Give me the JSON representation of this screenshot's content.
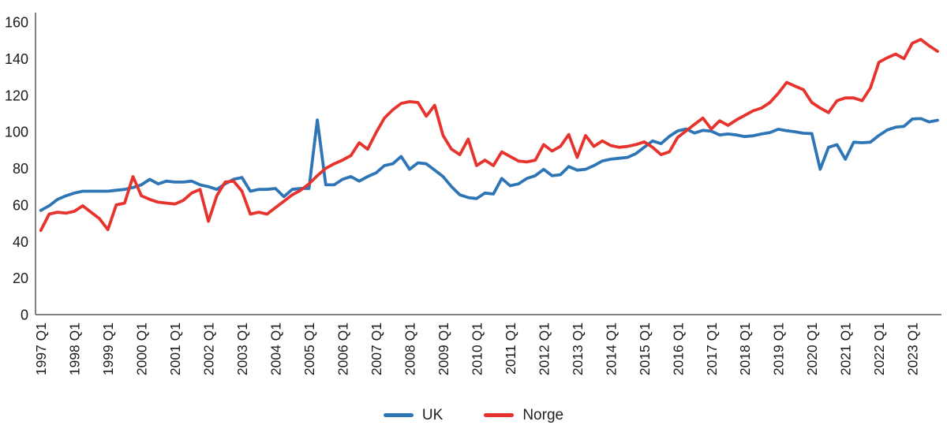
{
  "chart_data": {
    "type": "line",
    "title": "",
    "xlabel": "",
    "ylabel": "",
    "ylim": [
      0,
      160
    ],
    "grid": false,
    "legend_position": "bottom-center",
    "y_tick_labels": [
      "0",
      "20",
      "40",
      "60",
      "80",
      "100",
      "120",
      "140",
      "160"
    ],
    "x_tick_labels": [
      "1997 Q1",
      "1998 Q1",
      "1999 Q1",
      "2000 Q1",
      "2001 Q1",
      "2002 Q1",
      "2003 Q1",
      "2004 Q1",
      "2005 Q1",
      "2006 Q1",
      "2007 Q1",
      "2008 Q1",
      "2009 Q1",
      "2010 Q1",
      "2011 Q1",
      "2012 Q1",
      "2013 Q1",
      "2014 Q1",
      "2015 Q1",
      "2016 Q1",
      "2017 Q1",
      "2018 Q1",
      "2019 Q1",
      "2020 Q1",
      "2021 Q1",
      "2022 Q1",
      "2023 Q1"
    ],
    "x_frequency": "quarterly",
    "x_start": "1997 Q1",
    "x_end": "2023 Q4",
    "series": [
      {
        "name": "UK",
        "color": "#2E75B6",
        "values": [
          57,
          59.5,
          63,
          65,
          66.5,
          67.5,
          67.5,
          67.5,
          67.5,
          68,
          68.5,
          69.5,
          71,
          74,
          71.5,
          73,
          72.5,
          72.5,
          73,
          71,
          70,
          68.5,
          71.5,
          74,
          75,
          67.5,
          68.5,
          68.5,
          69,
          64.5,
          68.5,
          69,
          69,
          106.5,
          71,
          71,
          74,
          75.5,
          73,
          75.5,
          77.5,
          81.5,
          82.5,
          86.5,
          79.5,
          83,
          82.5,
          79,
          75.5,
          70,
          65.5,
          64,
          63.5,
          66.5,
          66,
          74.5,
          70.5,
          71.5,
          74.5,
          76,
          79.5,
          76,
          76.5,
          81,
          79,
          79.5,
          81.5,
          84,
          85,
          85.5,
          86,
          88,
          91.5,
          95,
          93.5,
          97.5,
          100.5,
          101.5,
          99.3,
          100.8,
          100.3,
          98.3,
          98.8,
          98.3,
          97.4,
          97.8,
          98.8,
          99.6,
          101.4,
          100.6,
          100,
          99.2,
          99,
          79.5,
          91.5,
          93,
          85,
          94.3,
          94,
          94.3,
          98,
          101,
          102.5,
          103,
          107,
          107.2,
          105.4,
          106.3
        ]
      },
      {
        "name": "Norge",
        "color": "#E6332D",
        "values": [
          46,
          55,
          56,
          55.5,
          56.5,
          59.5,
          56,
          52.5,
          46.5,
          60,
          61,
          75.5,
          65,
          63,
          61.5,
          61,
          60.5,
          62.5,
          66.5,
          68.5,
          51,
          65,
          72.5,
          73,
          67.5,
          55,
          56,
          55,
          58.5,
          62,
          65.5,
          68,
          71.5,
          76,
          80,
          82.5,
          84.5,
          87,
          94,
          90.5,
          99.5,
          107.5,
          112,
          115.5,
          116.5,
          116,
          108.5,
          114.5,
          98,
          90.5,
          87.5,
          96,
          81.5,
          84.5,
          81.5,
          89,
          86.5,
          84,
          83.5,
          84.5,
          93,
          89.5,
          92,
          98.5,
          86,
          98,
          92,
          95,
          92.5,
          91.5,
          92,
          93,
          94.5,
          91.5,
          87.5,
          89,
          97,
          100.5,
          104,
          107.5,
          101.5,
          106,
          103.5,
          106.5,
          109,
          111.5,
          113,
          116,
          121,
          127,
          125,
          123,
          116,
          113,
          110.5,
          117,
          118.5,
          118.5,
          117,
          124,
          138,
          140.5,
          142.5,
          140,
          148.5,
          150.5,
          147,
          144
        ]
      }
    ],
    "axis_color": "#595959"
  }
}
